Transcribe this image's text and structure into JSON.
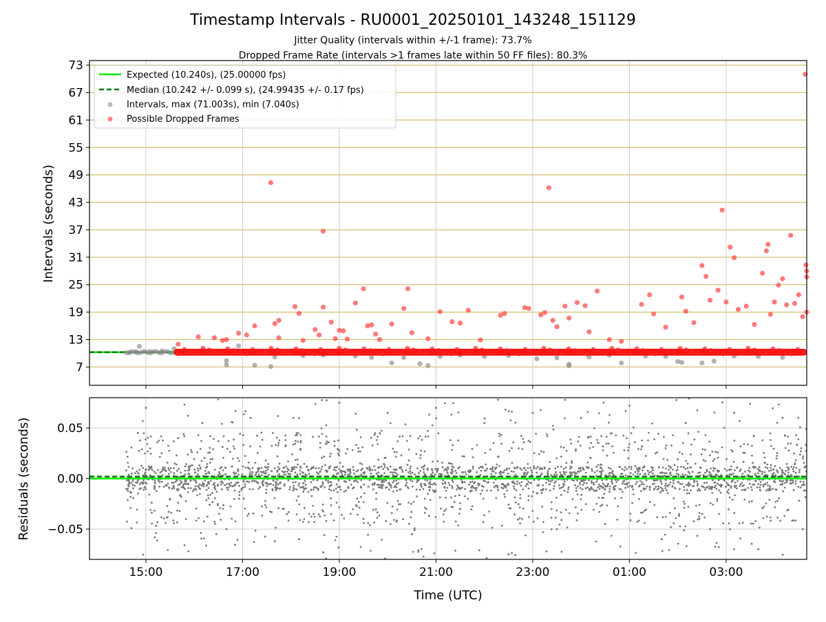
{
  "page": {
    "title": "Timestamp Intervals - RU0001_20250101_143248_151129",
    "subtitle_1": "Jitter Quality (intervals within +/-1 frame): 73.7%",
    "subtitle_2": "Dropped Frame Rate (intervals >1 frames late within 50 FF files): 80.3%"
  },
  "chart_data": [
    {
      "type": "scatter",
      "panel": "intervals",
      "xlabel": "",
      "ylabel": "Intervals (seconds)",
      "x_axis": {
        "type": "time",
        "start": "2025-01-01 13:50",
        "end": "2025-01-02 04:40",
        "tick_labels_shown": false
      },
      "ylim": [
        3.0,
        74.0
      ],
      "yticks": [
        7,
        13,
        19,
        25,
        31,
        37,
        43,
        49,
        55,
        61,
        67,
        73
      ],
      "grid": {
        "x": true,
        "y": true,
        "y_color": "#d4c070"
      },
      "legend": {
        "placement": "top-left",
        "entries": [
          {
            "label": "Expected (10.240s), (25.00000 fps)",
            "marker": "line",
            "color": "#00ee00"
          },
          {
            "label": "Median (10.242 +/- 0.099 s), (24.99435 +/- 0.17 fps)",
            "marker": "dashed-line",
            "color": "#007700"
          },
          {
            "label": "Intervals, max (71.003s), min (7.040s)",
            "marker": "dot",
            "color": "#888888"
          },
          {
            "label": "Possible Dropped Frames",
            "marker": "dot",
            "color": "#ff3333"
          }
        ]
      },
      "reference_lines": [
        {
          "name": "Expected",
          "value": 10.24,
          "color": "#00ee00",
          "style": "solid"
        },
        {
          "name": "Median",
          "value": 10.242,
          "color": "#007700",
          "style": "dashed"
        }
      ],
      "series": [
        {
          "name": "Intervals",
          "color": "#888888",
          "points": [
            [
              "2025-01-01 14:40",
              10.2
            ],
            [
              "2025-01-01 14:48",
              10.3
            ],
            [
              "2025-01-01 14:52",
              11.5
            ],
            [
              "2025-01-01 15:05",
              10.4
            ],
            [
              "2025-01-01 15:20",
              10.5
            ],
            [
              "2025-01-01 15:35",
              11.0
            ],
            [
              "2025-01-01 16:40",
              8.4
            ],
            [
              "2025-01-01 16:40",
              7.5
            ],
            [
              "2025-01-01 16:55",
              11.6
            ],
            [
              "2025-01-01 17:15",
              7.4
            ],
            [
              "2025-01-01 17:35",
              7.1
            ],
            [
              "2025-01-01 17:40",
              9.2
            ],
            [
              "2025-01-01 18:15",
              9.5
            ],
            [
              "2025-01-01 18:40",
              9.6
            ],
            [
              "2025-01-01 19:20",
              9.4
            ],
            [
              "2025-01-01 19:40",
              9.1
            ],
            [
              "2025-01-01 20:05",
              7.9
            ],
            [
              "2025-01-01 20:20",
              9.1
            ],
            [
              "2025-01-01 20:40",
              7.7
            ],
            [
              "2025-01-01 20:50",
              7.3
            ],
            [
              "2025-01-01 21:05",
              9.3
            ],
            [
              "2025-01-01 21:30",
              9.6
            ],
            [
              "2025-01-01 22:00",
              9.3
            ],
            [
              "2025-01-01 22:30",
              9.5
            ],
            [
              "2025-01-01 23:05",
              8.8
            ],
            [
              "2025-01-01 23:30",
              9.0
            ],
            [
              "2025-01-01 23:45",
              7.6
            ],
            [
              "2025-01-01 23:45",
              7.3
            ],
            [
              "2025-01-02 00:10",
              9.2
            ],
            [
              "2025-01-02 00:35",
              9.6
            ],
            [
              "2025-01-02 00:50",
              7.9
            ],
            [
              "2025-01-02 01:20",
              9.4
            ],
            [
              "2025-01-02 01:45",
              9.3
            ],
            [
              "2025-01-02 02:00",
              8.2
            ],
            [
              "2025-01-02 02:05",
              8.0
            ],
            [
              "2025-01-02 02:30",
              7.9
            ],
            [
              "2025-01-02 02:45",
              8.3
            ],
            [
              "2025-01-02 03:10",
              9.4
            ],
            [
              "2025-01-02 03:40",
              9.3
            ],
            [
              "2025-01-02 04:10",
              9.1
            ]
          ]
        },
        {
          "name": "Possible Dropped Frames",
          "color": "#ff3333",
          "points": [
            [
              "2025-01-01 15:40",
              12.0
            ],
            [
              "2025-01-01 16:05",
              13.6
            ],
            [
              "2025-01-01 16:25",
              13.4
            ],
            [
              "2025-01-01 16:35",
              12.8
            ],
            [
              "2025-01-01 16:40",
              13.0
            ],
            [
              "2025-01-01 16:55",
              14.4
            ],
            [
              "2025-01-01 17:05",
              14.0
            ],
            [
              "2025-01-01 17:15",
              16.0
            ],
            [
              "2025-01-01 17:35",
              47.3
            ],
            [
              "2025-01-01 17:40",
              16.5
            ],
            [
              "2025-01-01 17:45",
              17.2
            ],
            [
              "2025-01-01 17:45",
              13.4
            ],
            [
              "2025-01-01 18:05",
              20.2
            ],
            [
              "2025-01-01 18:10",
              18.7
            ],
            [
              "2025-01-01 18:15",
              12.8
            ],
            [
              "2025-01-01 18:30",
              15.2
            ],
            [
              "2025-01-01 18:35",
              14.0
            ],
            [
              "2025-01-01 18:40",
              36.7
            ],
            [
              "2025-01-01 18:40",
              20.1
            ],
            [
              "2025-01-01 18:50",
              16.8
            ],
            [
              "2025-01-01 18:55",
              13.2
            ],
            [
              "2025-01-01 19:00",
              15.0
            ],
            [
              "2025-01-01 19:05",
              14.9
            ],
            [
              "2025-01-01 19:10",
              13.1
            ],
            [
              "2025-01-01 19:20",
              21.0
            ],
            [
              "2025-01-01 19:30",
              24.1
            ],
            [
              "2025-01-01 19:35",
              16.0
            ],
            [
              "2025-01-01 19:40",
              16.2
            ],
            [
              "2025-01-01 19:45",
              14.2
            ],
            [
              "2025-01-01 19:50",
              13.0
            ],
            [
              "2025-01-01 20:05",
              16.4
            ],
            [
              "2025-01-01 20:20",
              19.8
            ],
            [
              "2025-01-01 20:25",
              24.1
            ],
            [
              "2025-01-01 20:30",
              14.5
            ],
            [
              "2025-01-01 20:50",
              13.2
            ],
            [
              "2025-01-01 21:05",
              19.1
            ],
            [
              "2025-01-01 21:20",
              16.9
            ],
            [
              "2025-01-01 21:30",
              16.6
            ],
            [
              "2025-01-01 21:40",
              19.4
            ],
            [
              "2025-01-01 21:55",
              12.9
            ],
            [
              "2025-01-01 22:20",
              18.3
            ],
            [
              "2025-01-01 22:25",
              18.7
            ],
            [
              "2025-01-01 22:50",
              20.0
            ],
            [
              "2025-01-01 22:55",
              19.8
            ],
            [
              "2025-01-01 23:10",
              18.4
            ],
            [
              "2025-01-01 23:15",
              18.9
            ],
            [
              "2025-01-01 23:20",
              46.2
            ],
            [
              "2025-01-01 23:25",
              17.2
            ],
            [
              "2025-01-01 23:30",
              15.8
            ],
            [
              "2025-01-01 23:40",
              20.3
            ],
            [
              "2025-01-01 23:45",
              17.7
            ],
            [
              "2025-01-01 23:55",
              21.1
            ],
            [
              "2025-01-02 00:05",
              20.4
            ],
            [
              "2025-01-02 00:10",
              14.7
            ],
            [
              "2025-01-02 00:20",
              23.6
            ],
            [
              "2025-01-02 00:35",
              13.0
            ],
            [
              "2025-01-02 00:50",
              12.6
            ],
            [
              "2025-01-02 01:15",
              20.7
            ],
            [
              "2025-01-02 01:25",
              22.8
            ],
            [
              "2025-01-02 01:30",
              18.6
            ],
            [
              "2025-01-02 01:45",
              15.7
            ],
            [
              "2025-01-02 02:05",
              22.3
            ],
            [
              "2025-01-02 02:10",
              19.2
            ],
            [
              "2025-01-02 02:20",
              16.7
            ],
            [
              "2025-01-02 02:30",
              29.2
            ],
            [
              "2025-01-02 02:35",
              26.8
            ],
            [
              "2025-01-02 02:40",
              21.6
            ],
            [
              "2025-01-02 02:50",
              23.8
            ],
            [
              "2025-01-02 02:55",
              41.3
            ],
            [
              "2025-01-02 03:00",
              21.2
            ],
            [
              "2025-01-02 03:05",
              33.2
            ],
            [
              "2025-01-02 03:10",
              30.9
            ],
            [
              "2025-01-02 03:15",
              19.6
            ],
            [
              "2025-01-02 03:25",
              20.3
            ],
            [
              "2025-01-02 03:35",
              16.3
            ],
            [
              "2025-01-02 03:45",
              27.5
            ],
            [
              "2025-01-02 03:50",
              32.4
            ],
            [
              "2025-01-02 03:52",
              33.8
            ],
            [
              "2025-01-02 03:55",
              18.5
            ],
            [
              "2025-01-02 04:00",
              21.2
            ],
            [
              "2025-01-02 04:05",
              24.9
            ],
            [
              "2025-01-02 04:10",
              26.3
            ],
            [
              "2025-01-02 04:15",
              20.6
            ],
            [
              "2025-01-02 04:20",
              35.8
            ],
            [
              "2025-01-02 04:25",
              20.9
            ],
            [
              "2025-01-02 04:30",
              22.8
            ],
            [
              "2025-01-02 04:35",
              18.0
            ],
            [
              "2025-01-02 04:38",
              71.0
            ],
            [
              "2025-01-02 04:39",
              29.3
            ],
            [
              "2025-01-02 04:40",
              28.0
            ],
            [
              "2025-01-02 04:40",
              19.0
            ],
            [
              "2025-01-02 04:40",
              26.7
            ]
          ]
        }
      ]
    },
    {
      "type": "scatter",
      "panel": "residuals",
      "xlabel": "Time (UTC)",
      "ylabel": "Residuals (seconds)",
      "x_axis": {
        "type": "time",
        "start": "2025-01-01 13:50",
        "end": "2025-01-02 04:40"
      },
      "xticks": [
        "15:00",
        "17:00",
        "19:00",
        "21:00",
        "23:00",
        "01:00",
        "03:00"
      ],
      "ylim": [
        -0.08,
        0.08
      ],
      "yticks": [
        0.05,
        0.0,
        -0.05
      ],
      "ytick_labels": [
        "0.05",
        "0.00",
        "−0.05"
      ],
      "grid": {
        "x": true,
        "y": true,
        "color": "#cccccc"
      },
      "reference_lines": [
        {
          "name": "Expected",
          "value": 0.0,
          "color": "#00ee00",
          "style": "solid"
        },
        {
          "name": "Median",
          "value": 0.002,
          "color": "#007700",
          "style": "dashed"
        }
      ],
      "series": [
        {
          "name": "Residuals",
          "color": "#777777",
          "distribution": "dense cloud of points centred on 0.00, mostly within +/-0.02 s, scattered out to +/-0.08 s",
          "points": [
            [
              "2025-01-01 14:50",
              0.045
            ],
            [
              "2025-01-01 15:00",
              0.07
            ],
            [
              "2025-01-01 15:30",
              -0.02
            ],
            [
              "2025-01-01 15:40",
              0.04
            ],
            [
              "2025-01-01 16:10",
              0.055
            ],
            [
              "2025-01-01 16:40",
              -0.05
            ],
            [
              "2025-01-01 17:10",
              0.06
            ],
            [
              "2025-01-01 17:50",
              -0.03
            ],
            [
              "2025-01-01 18:10",
              -0.06
            ],
            [
              "2025-01-01 18:40",
              -0.073
            ],
            [
              "2025-01-01 19:00",
              0.075
            ],
            [
              "2025-01-01 19:30",
              -0.04
            ],
            [
              "2025-01-01 20:00",
              0.065
            ],
            [
              "2025-01-01 20:30",
              -0.055
            ],
            [
              "2025-01-01 21:00",
              0.07
            ],
            [
              "2025-01-01 21:30",
              -0.03
            ],
            [
              "2025-01-01 22:00",
              0.055
            ],
            [
              "2025-01-01 22:30",
              -0.075
            ],
            [
              "2025-01-01 23:00",
              0.065
            ],
            [
              "2025-01-01 23:30",
              -0.05
            ],
            [
              "2025-01-02 00:00",
              0.06
            ],
            [
              "2025-01-02 00:30",
              -0.045
            ],
            [
              "2025-01-02 01:00",
              0.072
            ],
            [
              "2025-01-02 01:40",
              -0.06
            ],
            [
              "2025-01-02 02:10",
              0.055
            ],
            [
              "2025-01-02 02:40",
              -0.05
            ],
            [
              "2025-01-02 03:10",
              0.065
            ],
            [
              "2025-01-02 03:40",
              -0.07
            ],
            [
              "2025-01-02 04:10",
              0.06
            ],
            [
              "2025-01-02 04:35",
              -0.05
            ]
          ]
        }
      ]
    }
  ]
}
